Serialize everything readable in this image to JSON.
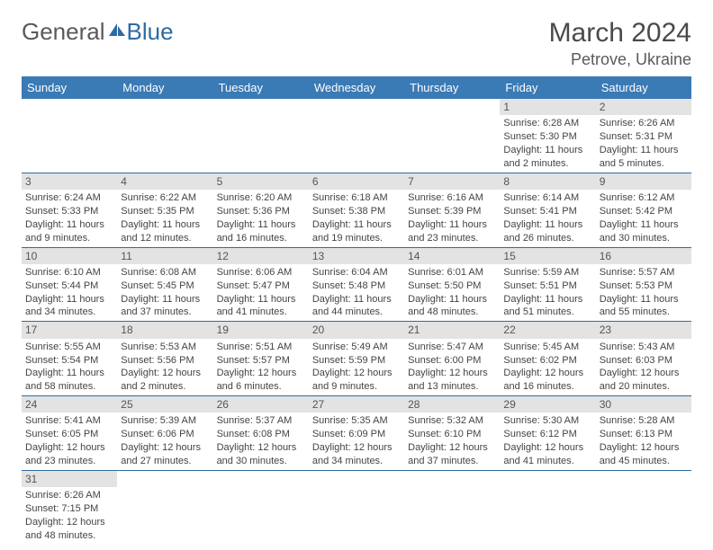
{
  "brand": {
    "text1": "General",
    "text2": "Blue"
  },
  "title": "March 2024",
  "location": "Petrove, Ukraine",
  "header_bg": "#3a7ab5",
  "border_color": "#2d6ca2",
  "daynum_bg": "#e3e3e3",
  "days_of_week": [
    "Sunday",
    "Monday",
    "Tuesday",
    "Wednesday",
    "Thursday",
    "Friday",
    "Saturday"
  ],
  "weeks": [
    [
      null,
      null,
      null,
      null,
      null,
      {
        "n": "1",
        "sr": "6:28 AM",
        "ss": "5:30 PM",
        "dl": "11 hours and 2 minutes."
      },
      {
        "n": "2",
        "sr": "6:26 AM",
        "ss": "5:31 PM",
        "dl": "11 hours and 5 minutes."
      }
    ],
    [
      {
        "n": "3",
        "sr": "6:24 AM",
        "ss": "5:33 PM",
        "dl": "11 hours and 9 minutes."
      },
      {
        "n": "4",
        "sr": "6:22 AM",
        "ss": "5:35 PM",
        "dl": "11 hours and 12 minutes."
      },
      {
        "n": "5",
        "sr": "6:20 AM",
        "ss": "5:36 PM",
        "dl": "11 hours and 16 minutes."
      },
      {
        "n": "6",
        "sr": "6:18 AM",
        "ss": "5:38 PM",
        "dl": "11 hours and 19 minutes."
      },
      {
        "n": "7",
        "sr": "6:16 AM",
        "ss": "5:39 PM",
        "dl": "11 hours and 23 minutes."
      },
      {
        "n": "8",
        "sr": "6:14 AM",
        "ss": "5:41 PM",
        "dl": "11 hours and 26 minutes."
      },
      {
        "n": "9",
        "sr": "6:12 AM",
        "ss": "5:42 PM",
        "dl": "11 hours and 30 minutes."
      }
    ],
    [
      {
        "n": "10",
        "sr": "6:10 AM",
        "ss": "5:44 PM",
        "dl": "11 hours and 34 minutes."
      },
      {
        "n": "11",
        "sr": "6:08 AM",
        "ss": "5:45 PM",
        "dl": "11 hours and 37 minutes."
      },
      {
        "n": "12",
        "sr": "6:06 AM",
        "ss": "5:47 PM",
        "dl": "11 hours and 41 minutes."
      },
      {
        "n": "13",
        "sr": "6:04 AM",
        "ss": "5:48 PM",
        "dl": "11 hours and 44 minutes."
      },
      {
        "n": "14",
        "sr": "6:01 AM",
        "ss": "5:50 PM",
        "dl": "11 hours and 48 minutes."
      },
      {
        "n": "15",
        "sr": "5:59 AM",
        "ss": "5:51 PM",
        "dl": "11 hours and 51 minutes."
      },
      {
        "n": "16",
        "sr": "5:57 AM",
        "ss": "5:53 PM",
        "dl": "11 hours and 55 minutes."
      }
    ],
    [
      {
        "n": "17",
        "sr": "5:55 AM",
        "ss": "5:54 PM",
        "dl": "11 hours and 58 minutes."
      },
      {
        "n": "18",
        "sr": "5:53 AM",
        "ss": "5:56 PM",
        "dl": "12 hours and 2 minutes."
      },
      {
        "n": "19",
        "sr": "5:51 AM",
        "ss": "5:57 PM",
        "dl": "12 hours and 6 minutes."
      },
      {
        "n": "20",
        "sr": "5:49 AM",
        "ss": "5:59 PM",
        "dl": "12 hours and 9 minutes."
      },
      {
        "n": "21",
        "sr": "5:47 AM",
        "ss": "6:00 PM",
        "dl": "12 hours and 13 minutes."
      },
      {
        "n": "22",
        "sr": "5:45 AM",
        "ss": "6:02 PM",
        "dl": "12 hours and 16 minutes."
      },
      {
        "n": "23",
        "sr": "5:43 AM",
        "ss": "6:03 PM",
        "dl": "12 hours and 20 minutes."
      }
    ],
    [
      {
        "n": "24",
        "sr": "5:41 AM",
        "ss": "6:05 PM",
        "dl": "12 hours and 23 minutes."
      },
      {
        "n": "25",
        "sr": "5:39 AM",
        "ss": "6:06 PM",
        "dl": "12 hours and 27 minutes."
      },
      {
        "n": "26",
        "sr": "5:37 AM",
        "ss": "6:08 PM",
        "dl": "12 hours and 30 minutes."
      },
      {
        "n": "27",
        "sr": "5:35 AM",
        "ss": "6:09 PM",
        "dl": "12 hours and 34 minutes."
      },
      {
        "n": "28",
        "sr": "5:32 AM",
        "ss": "6:10 PM",
        "dl": "12 hours and 37 minutes."
      },
      {
        "n": "29",
        "sr": "5:30 AM",
        "ss": "6:12 PM",
        "dl": "12 hours and 41 minutes."
      },
      {
        "n": "30",
        "sr": "5:28 AM",
        "ss": "6:13 PM",
        "dl": "12 hours and 45 minutes."
      }
    ],
    [
      {
        "n": "31",
        "sr": "6:26 AM",
        "ss": "7:15 PM",
        "dl": "12 hours and 48 minutes."
      },
      null,
      null,
      null,
      null,
      null,
      null
    ]
  ],
  "labels": {
    "sunrise": "Sunrise:",
    "sunset": "Sunset:",
    "daylight": "Daylight:"
  }
}
